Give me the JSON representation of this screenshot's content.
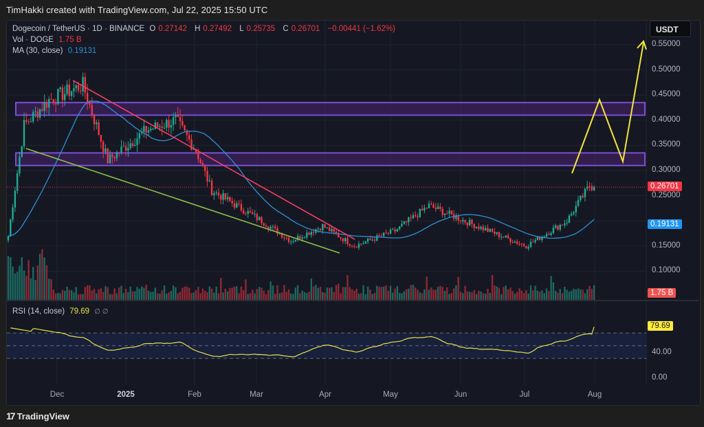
{
  "attribution": "TimHakki created with TradingView.com, Jul 22, 2025 15:50 UTC",
  "legend": {
    "symbol": "Dogecoin / TetherUS · 1D · BINANCE",
    "open_label": "O",
    "open": "0.27142",
    "high_label": "H",
    "high": "0.27492",
    "low_label": "L",
    "low": "0.25735",
    "close_label": "C",
    "close": "0.26701",
    "change": "−0.00441 (−1.62%)",
    "vol_label": "Vol · DOGE",
    "vol": "1.75 B",
    "ma_label": "MA (30, close)",
    "ma": "0.19131",
    "rsi_label": "RSI (14, close)",
    "rsi": "79.69",
    "rsi_extra": "∅ ∅"
  },
  "currency_button": "USDT",
  "price_axis": [
    "0.55000",
    "0.50000",
    "0.45000",
    "0.40000",
    "0.35000",
    "0.30000",
    "0.25000",
    "0.15000",
    "0.10000"
  ],
  "badges": {
    "last_price": "0.26701",
    "ma_value": "0.19131",
    "volume": "1.75 B",
    "rsi": "79.69"
  },
  "rsi_axis": [
    "40.00",
    "0.00"
  ],
  "time_axis": [
    {
      "label": "Dec",
      "x": 83,
      "bold": false
    },
    {
      "label": "2025",
      "x": 183,
      "bold": true
    },
    {
      "label": "Feb",
      "x": 283,
      "bold": false
    },
    {
      "label": "Mar",
      "x": 373,
      "bold": false
    },
    {
      "label": "Apr",
      "x": 473,
      "bold": false
    },
    {
      "label": "May",
      "x": 568,
      "bold": false
    },
    {
      "label": "Jun",
      "x": 670,
      "bold": false
    },
    {
      "label": "Jul",
      "x": 763,
      "bold": false
    },
    {
      "label": "Aug",
      "x": 865,
      "bold": false
    }
  ],
  "brand": "TradingView",
  "colors": {
    "up": "#22ab94",
    "down": "#f23645",
    "ma": "#2f8fd8",
    "rsi": "#e8e04a",
    "zone": "#7b4fd6",
    "resistance_line": "#f23e64",
    "support_line": "#8bc34a",
    "projection": "#f5e63a",
    "last_price_badge": "#f23645",
    "ma_badge": "#2196f3",
    "volume_badge": "#ef5350",
    "rsi_badge": "#ffeb3b"
  },
  "chart_data": {
    "type": "candlestick",
    "title": "Dogecoin / TetherUS · 1D · BINANCE",
    "xlabel": "",
    "ylabel": "USDT",
    "ylim": [
      0.05,
      0.57
    ],
    "x_ticks": [
      "Dec",
      "2025",
      "Feb",
      "Mar",
      "Apr",
      "May",
      "Jun",
      "Jul",
      "Aug"
    ],
    "y_ticks": [
      0.1,
      0.15,
      0.2,
      0.25,
      0.3,
      0.35,
      0.4,
      0.45,
      0.5,
      0.55
    ],
    "ohlc_last": {
      "open": 0.27142,
      "high": 0.27492,
      "low": 0.25735,
      "close": 0.26701,
      "change": -0.00441,
      "change_pct": -1.62
    },
    "price_path_keypoints": [
      {
        "date": "2024-11-05",
        "close": 0.17
      },
      {
        "date": "2024-11-12",
        "close": 0.39
      },
      {
        "date": "2024-11-23",
        "close": 0.44
      },
      {
        "date": "2024-12-08",
        "close": 0.47
      },
      {
        "date": "2024-12-19",
        "close": 0.32
      },
      {
        "date": "2025-01-05",
        "close": 0.38
      },
      {
        "date": "2025-01-18",
        "close": 0.4
      },
      {
        "date": "2025-01-27",
        "close": 0.34
      },
      {
        "date": "2025-02-03",
        "close": 0.26
      },
      {
        "date": "2025-02-25",
        "close": 0.2
      },
      {
        "date": "2025-03-10",
        "close": 0.16
      },
      {
        "date": "2025-03-24",
        "close": 0.19
      },
      {
        "date": "2025-04-07",
        "close": 0.15
      },
      {
        "date": "2025-04-25",
        "close": 0.18
      },
      {
        "date": "2025-05-10",
        "close": 0.23
      },
      {
        "date": "2025-05-31",
        "close": 0.19
      },
      {
        "date": "2025-06-22",
        "close": 0.15
      },
      {
        "date": "2025-07-10",
        "close": 0.2
      },
      {
        "date": "2025-07-20",
        "close": 0.27
      },
      {
        "date": "2025-07-22",
        "close": 0.267
      }
    ],
    "series": [
      {
        "name": "MA (30, close)",
        "last": 0.19131
      },
      {
        "name": "Vol · DOGE",
        "last": "1.75B"
      },
      {
        "name": "RSI (14, close)",
        "last": 79.69,
        "levels": [
          70,
          50,
          30
        ]
      }
    ],
    "annotations": [
      {
        "type": "zone",
        "label": "resistance zone",
        "range": [
          0.41,
          0.435
        ]
      },
      {
        "type": "zone",
        "label": "support/resistance zone",
        "range": [
          0.31,
          0.335
        ]
      },
      {
        "type": "trendline",
        "label": "descending resistance",
        "from": {
          "date": "2024-12-08",
          "price": 0.475
        },
        "to": {
          "date": "2025-04-12",
          "price": 0.17
        }
      },
      {
        "type": "trendline",
        "label": "descending support",
        "from": {
          "date": "2024-11-12",
          "price": 0.345
        },
        "to": {
          "date": "2025-04-07",
          "price": 0.13
        }
      },
      {
        "type": "projection",
        "label": "forecast path",
        "points": [
          0.29,
          0.44,
          0.315,
          0.56
        ]
      }
    ]
  }
}
